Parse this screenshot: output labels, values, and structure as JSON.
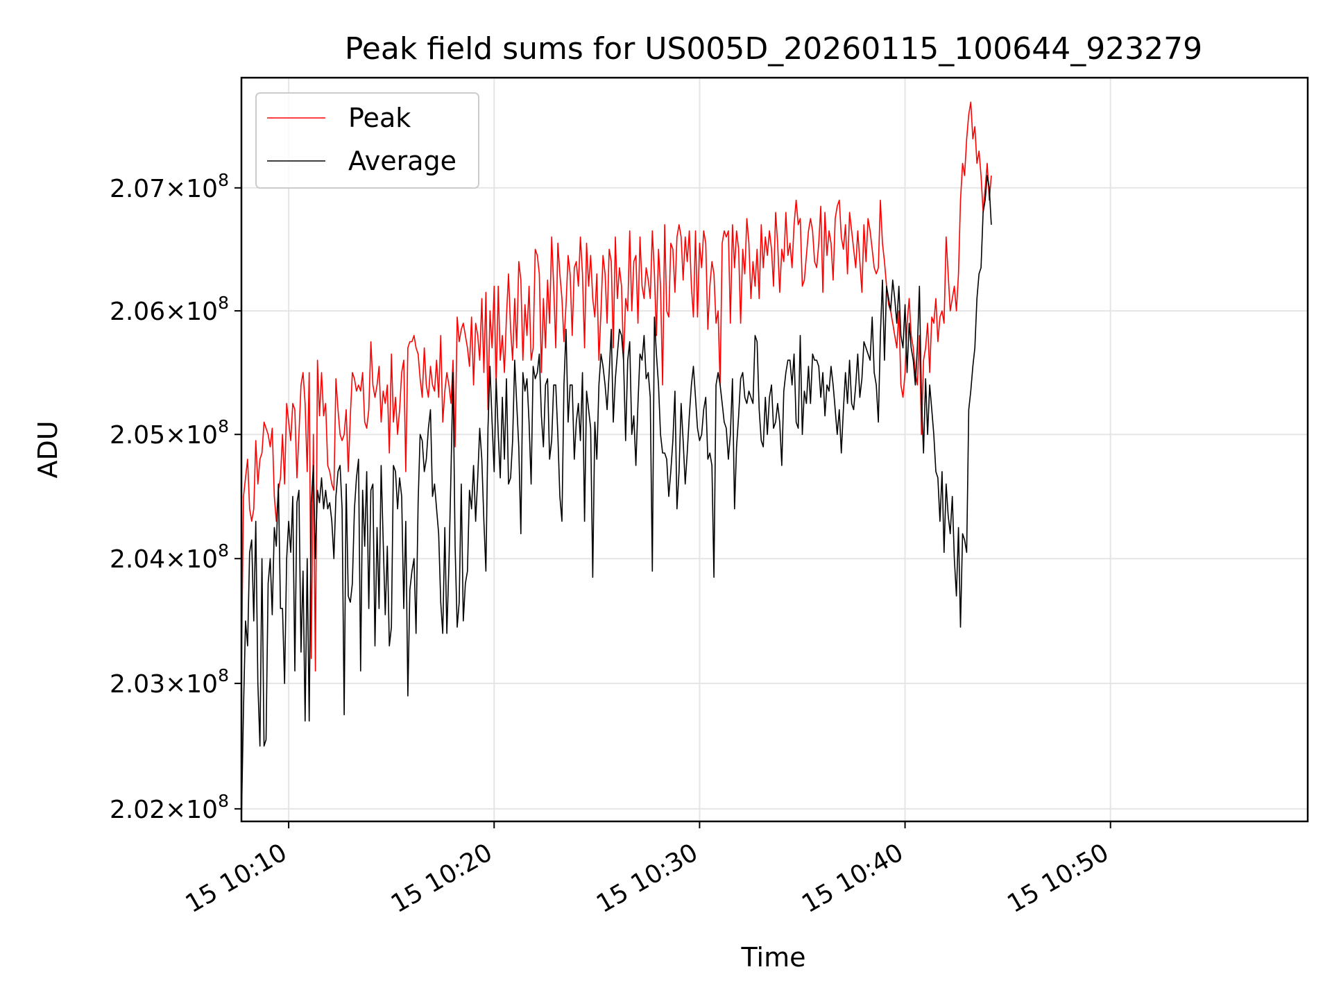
{
  "chart_data": {
    "type": "line",
    "title": "Peak field sums for US005D_20260115_100644_923279",
    "xlabel": "Time",
    "ylabel": "ADU",
    "grid": true,
    "legend_position": "top-left",
    "y_scale": "log",
    "x_range_minutes": [
      7.7,
      59.6
    ],
    "ylim": [
      201900000,
      207900000
    ],
    "x_ticks": [
      {
        "minute": 10,
        "label": "15 10:10"
      },
      {
        "minute": 20,
        "label": "15 10:20"
      },
      {
        "minute": 30,
        "label": "15 10:30"
      },
      {
        "minute": 40,
        "label": "15 10:40"
      },
      {
        "minute": 50,
        "label": "15 10:50"
      }
    ],
    "y_ticks": [
      {
        "value": 202000000,
        "mantissa": "2.02",
        "base": "10",
        "exponent": "8"
      },
      {
        "value": 203000000,
        "mantissa": "2.03",
        "base": "10",
        "exponent": "8"
      },
      {
        "value": 204000000,
        "mantissa": "2.04",
        "base": "10",
        "exponent": "8"
      },
      {
        "value": 205000000,
        "mantissa": "2.05",
        "base": "10",
        "exponent": "8"
      },
      {
        "value": 206000000,
        "mantissa": "2.06",
        "base": "10",
        "exponent": "8"
      },
      {
        "value": 207000000,
        "mantissa": "2.07",
        "base": "10",
        "exponent": "8"
      }
    ],
    "series": [
      {
        "name": "Peak",
        "color": "#ff0000",
        "x_start_minute": 7.7,
        "x_step_minute": 0.1,
        "values": [
          203100000,
          204500000,
          204650000,
          204800000,
          204400000,
          204300000,
          204400000,
          204950000,
          204600000,
          204800000,
          204850000,
          205100000,
          205050000,
          205000000,
          204900000,
          205050000,
          204500000,
          204300000,
          204550000,
          204650000,
          205000000,
          204600000,
          205250000,
          205100000,
          204950000,
          205250000,
          205200000,
          204650000,
          205000000,
          205400000,
          205500000,
          205250000,
          204700000,
          205500000,
          203200000,
          205000000,
          203100000,
          205600000,
          205150000,
          205500000,
          205150000,
          205250000,
          204750000,
          204700000,
          204600000,
          204550000,
          205450000,
          205200000,
          205000000,
          204950000,
          205000000,
          205200000,
          204700000,
          205150000,
          205500000,
          205450000,
          205350000,
          205400000,
          205350000,
          205500000,
          205100000,
          205050000,
          205200000,
          205750000,
          205400000,
          205300000,
          205400000,
          205550000,
          205100000,
          205350000,
          205250000,
          205400000,
          204850000,
          205650000,
          205100000,
          205300000,
          205000000,
          205200000,
          205500000,
          205600000,
          204700000,
          205700000,
          205750000,
          205750000,
          205800000,
          205700000,
          205650000,
          205450000,
          205300000,
          205700000,
          205400000,
          205300000,
          205550000,
          205400000,
          205350000,
          205600000,
          205300000,
          205800000,
          205100000,
          205350000,
          205500000,
          205400000,
          205250000,
          205600000,
          204900000,
          205950000,
          205750000,
          205850000,
          205900000,
          205800000,
          205700000,
          205550000,
          205950000,
          205400000,
          205900000,
          205800000,
          205600000,
          206100000,
          205500000,
          206150000,
          205200000,
          206000000,
          205700000,
          206200000,
          205400000,
          206200000,
          205600000,
          205800000,
          205500000,
          205950000,
          206300000,
          205850000,
          205600000,
          206100000,
          205700000,
          206400000,
          206250000,
          205600000,
          206050000,
          205800000,
          206200000,
          205600000,
          205700000,
          206500000,
          206450000,
          206300000,
          205500000,
          206100000,
          205700000,
          206250000,
          205900000,
          206600000,
          206200000,
          205700000,
          206550000,
          206300000,
          206100000,
          205750000,
          206050000,
          206450000,
          206300000,
          205800000,
          206350000,
          206400000,
          206200000,
          206600000,
          206300000,
          205700000,
          206550000,
          206200000,
          206450000,
          206100000,
          205950000,
          206300000,
          205600000,
          206000000,
          206450000,
          206300000,
          205900000,
          206500000,
          206400000,
          205700000,
          206600000,
          206100000,
          206350000,
          206200000,
          205600000,
          206100000,
          206000000,
          206650000,
          206000000,
          206400000,
          206450000,
          205900000,
          206600000,
          206200000,
          206100000,
          206350000,
          206250000,
          206100000,
          206650000,
          206300000,
          205800000,
          206500000,
          206200000,
          205400000,
          206700000,
          206000000,
          205950000,
          206550000,
          206500000,
          206150000,
          206600000,
          206700000,
          206600000,
          206250000,
          206600000,
          206400000,
          206650000,
          206200000,
          205950000,
          206650000,
          205950000,
          206550000,
          206350000,
          206650000,
          206550000,
          205850000,
          206200000,
          206400000,
          206300000,
          205900000,
          206000000,
          205400000,
          206550000,
          206650000,
          206600000,
          206650000,
          205900000,
          206700000,
          206350000,
          206650000,
          206500000,
          205900000,
          206500000,
          206300000,
          206750000,
          206550000,
          206100000,
          206400000,
          206200000,
          206500000,
          206100000,
          206700000,
          206350000,
          206600000,
          206450000,
          206650000,
          206500000,
          206200000,
          206800000,
          206550000,
          206150000,
          206500000,
          206400000,
          206800000,
          206450000,
          206550000,
          206350000,
          206700000,
          206900000,
          206700000,
          206750000,
          206200000,
          206250000,
          206450000,
          206650000,
          206750000,
          206650000,
          206400000,
          206350000,
          206550000,
          206850000,
          206150000,
          206800000,
          206450000,
          206650000,
          206550000,
          206250000,
          206750000,
          206850000,
          206900000,
          206600000,
          206500000,
          206700000,
          206300000,
          206800000,
          206650000,
          206500000,
          206350000,
          206650000,
          206400000,
          206150000,
          206700000,
          206400000,
          206750000,
          206650000,
          206500000,
          206350000,
          206300000,
          206350000,
          206900000,
          206550000,
          206400000,
          206200000,
          206050000,
          206000000,
          205900000,
          205800000,
          205700000,
          206000000,
          205400000,
          205300000,
          205500000,
          205900000,
          206100000,
          205800000,
          205700000,
          205500000,
          205400000,
          205800000,
          205000000,
          205600000,
          205700000,
          205900000,
          205500000,
          205950000,
          205900000,
          206100000,
          205750000,
          205950000,
          206000000,
          205900000,
          206600000,
          206300000,
          206000000,
          206100000,
          206200000,
          206000000,
          206300000,
          206900000,
          207200000,
          207100000,
          207400000,
          207600000,
          207700000,
          207400000,
          207500000,
          207200000,
          207300000,
          207100000,
          206800000,
          207000000,
          207200000,
          206900000,
          207100000
        ]
      },
      {
        "name": "Average",
        "color": "#000000",
        "x_start_minute": 7.7,
        "x_step_minute": 0.1,
        "values": [
          201900000,
          202800000,
          203500000,
          203300000,
          204050000,
          204150000,
          203500000,
          204300000,
          203000000,
          202500000,
          204000000,
          202500000,
          202550000,
          203800000,
          204000000,
          203550000,
          204250000,
          204100000,
          204600000,
          203600000,
          203600000,
          203000000,
          204000000,
          204300000,
          204050000,
          204500000,
          203100000,
          204450000,
          204550000,
          203250000,
          203900000,
          202700000,
          204000000,
          202700000,
          204450000,
          204750000,
          204000000,
          204550000,
          204450000,
          204650000,
          204400000,
          204550000,
          204400000,
          204450000,
          204300000,
          204000000,
          204500000,
          204700000,
          204750000,
          204400000,
          202750000,
          204600000,
          203700000,
          203650000,
          203800000,
          204400000,
          204650000,
          204800000,
          203100000,
          204550000,
          204100000,
          204700000,
          203600000,
          204550000,
          204600000,
          203300000,
          204250000,
          203600000,
          204750000,
          204150000,
          203550000,
          204100000,
          203300000,
          203450000,
          204750000,
          204700000,
          204400000,
          204650000,
          204500000,
          203600000,
          204300000,
          202900000,
          203750000,
          203900000,
          204000000,
          203400000,
          204450000,
          205000000,
          204950000,
          204700000,
          204800000,
          205050000,
          205200000,
          204500000,
          204600000,
          204400000,
          204200000,
          203650000,
          203400000,
          204250000,
          203400000,
          203950000,
          204700000,
          205500000,
          204100000,
          203450000,
          203650000,
          204600000,
          203500000,
          203800000,
          203900000,
          204550000,
          204400000,
          204750000,
          204300000,
          204650000,
          205050000,
          204800000,
          204300000,
          203900000,
          205050000,
          205550000,
          205100000,
          204700000,
          205450000,
          205000000,
          204650000,
          205300000,
          204800000,
          205450000,
          204600000,
          204650000,
          204950000,
          205600000,
          205250000,
          204900000,
          204200000,
          205500000,
          205350000,
          205450000,
          205100000,
          204600000,
          205550000,
          205450000,
          205500000,
          205650000,
          205150000,
          204900000,
          205400000,
          205450000,
          204800000,
          204950000,
          205400000,
          205400000,
          205000000,
          204500000,
          204300000,
          205400000,
          205850000,
          205100000,
          205400000,
          205400000,
          204800000,
          205100000,
          205250000,
          204950000,
          205500000,
          204300000,
          205350000,
          205200000,
          205050000,
          203850000,
          205100000,
          204800000,
          205400000,
          205650000,
          205550000,
          205400000,
          205200000,
          205500000,
          205850000,
          205100000,
          205450000,
          205650000,
          205850000,
          205800000,
          205600000,
          204950000,
          205600000,
          205750000,
          205000000,
          205150000,
          204750000,
          205250000,
          205650000,
          205600000,
          205800000,
          205450000,
          205500000,
          205300000,
          203900000,
          205950000,
          205650000,
          205400000,
          205000000,
          204850000,
          204850000,
          204800000,
          204500000,
          204700000,
          204950000,
          205350000,
          204400000,
          204700000,
          205250000,
          204950000,
          204600000,
          204850000,
          205150000,
          205400000,
          205550000,
          205300000,
          205050000,
          204950000,
          205000000,
          205200000,
          205300000,
          204800000,
          204850000,
          204750000,
          203850000,
          205400000,
          205500000,
          205400000,
          205250000,
          205100000,
          205050000,
          204800000,
          205000000,
          205450000,
          204400000,
          204900000,
          205150000,
          205450000,
          205500000,
          205300000,
          205250000,
          205350000,
          205300000,
          205250000,
          205800000,
          205750000,
          205200000,
          204950000,
          204900000,
          205300000,
          205000000,
          205300000,
          205400000,
          205050000,
          205100000,
          205250000,
          205100000,
          204750000,
          205350000,
          205500000,
          205600000,
          205600000,
          205400000,
          205650000,
          205100000,
          205050000,
          205800000,
          205000000,
          205350000,
          205250000,
          205550000,
          205250000,
          205650000,
          205600000,
          205600000,
          205550000,
          205300000,
          205500000,
          205150000,
          205400000,
          205350000,
          205550000,
          205400000,
          205200000,
          205000000,
          205200000,
          204850000,
          205200000,
          205500000,
          205250000,
          205600000,
          205250000,
          205200000,
          205400000,
          205650000,
          205300000,
          205450000,
          205750000,
          205700000,
          205650000,
          205600000,
          205950000,
          205500000,
          205400000,
          205100000,
          205800000,
          206250000,
          205600000,
          206200000,
          206100000,
          206000000,
          206250000,
          206100000,
          205900000,
          206200000,
          205800000,
          205700000,
          206050000,
          205500000,
          205900000,
          205700000,
          205600000,
          205400000,
          205700000,
          206200000,
          205300000,
          204850000,
          205450000,
          205000000,
          205400000,
          205200000,
          205000000,
          204700000,
          204650000,
          204300000,
          204700000,
          204050000,
          204600000,
          204350000,
          204200000,
          204500000,
          204000000,
          203700000,
          204250000,
          203450000,
          204200000,
          204150000,
          204050000,
          205200000,
          205350000,
          205550000,
          205700000,
          206100000,
          206300000,
          206350000,
          206800000,
          206900000,
          207100000,
          207000000,
          206700000
        ]
      }
    ]
  }
}
